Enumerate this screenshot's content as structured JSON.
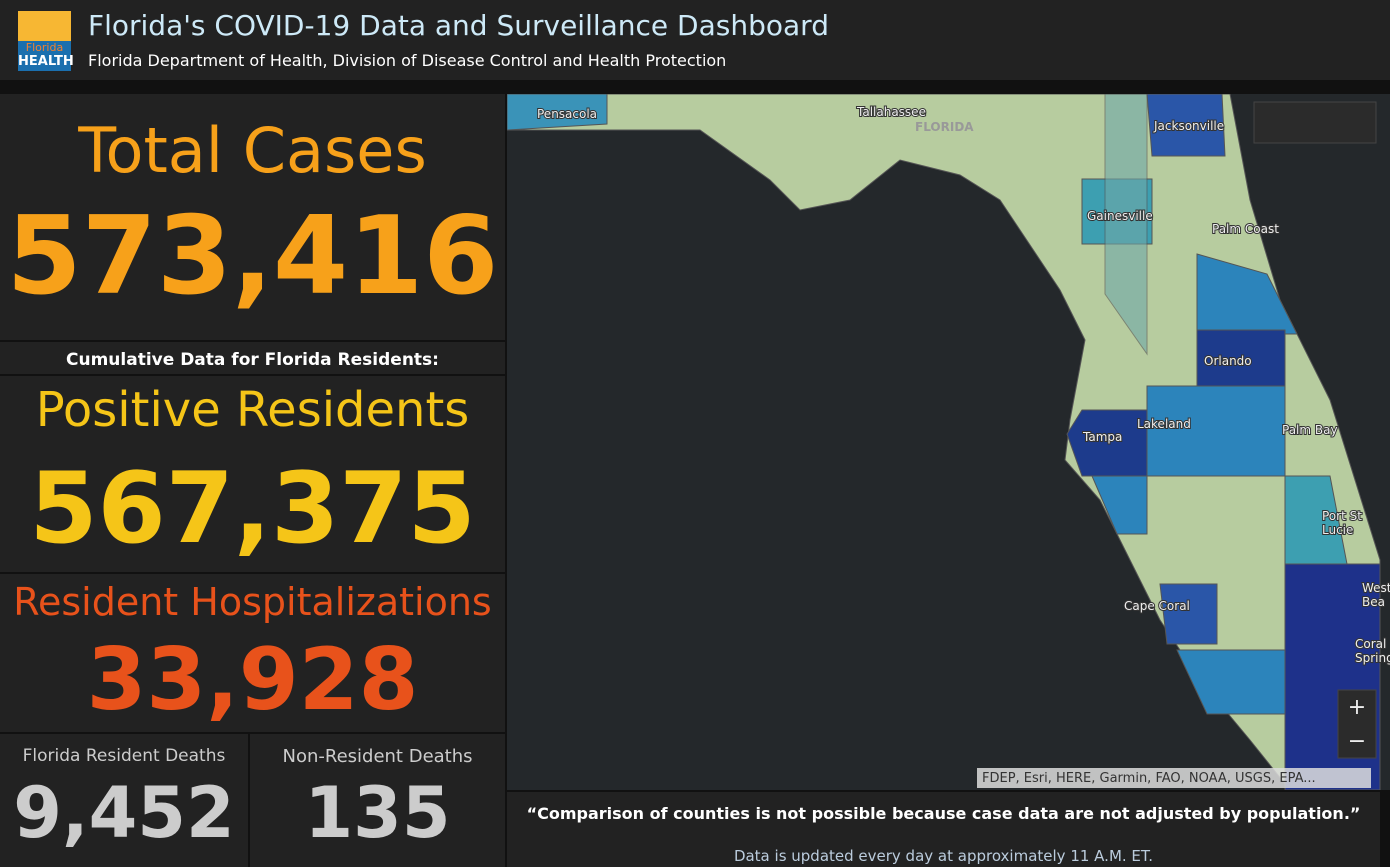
{
  "header": {
    "title": "Florida's COVID-19 Data and Surveillance Dashboard",
    "subtitle": "Florida Department of Health, Division of Disease Control and Health Protection",
    "logo": [
      "Florida",
      "HEALTH"
    ]
  },
  "total_cases": {
    "label": "Total Cases",
    "value": "573,416"
  },
  "section_label": "Cumulative Data for Florida Residents:",
  "positive_residents": {
    "label": "Positive Residents",
    "value": "567,375"
  },
  "hospitalizations": {
    "label": "Resident Hospitalizations",
    "value": "33,928"
  },
  "resident_deaths": {
    "label": "Florida Resident Deaths",
    "value": "9,452"
  },
  "nonresident_deaths": {
    "label": "Non-Resident Deaths",
    "value": "135"
  },
  "map": {
    "labels": [
      "Pensacola",
      "Tallahassee",
      "FLORIDA",
      "Jacksonville",
      "Gainesville",
      "Palm Coast",
      "Orlando",
      "Tampa",
      "Lakeland",
      "Palm Bay",
      [
        "Port St",
        "Lucie"
      ],
      [
        "West P",
        "Bea"
      ],
      [
        "Coral",
        "Springs"
      ],
      "Cape Coral"
    ],
    "attribution": "FDEP, Esri, HERE, Garmin, FAO, NOAA, USGS, EPA...",
    "zoom": [
      "+",
      "−"
    ]
  },
  "footer": {
    "note": "“Comparison of counties is not possible because case data are not adjusted by population.”",
    "update": "Data is updated every day at approximately 11 A.M. ET."
  }
}
